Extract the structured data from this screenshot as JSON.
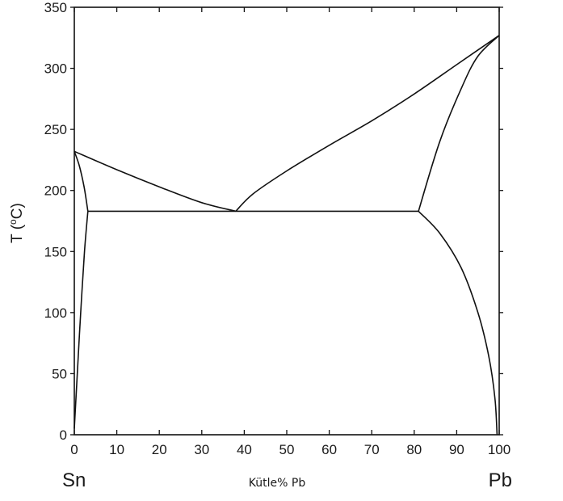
{
  "chart_data": {
    "type": "line",
    "title": "",
    "xlabel": "Kütle% Pb",
    "ylabel_prefix": "T (",
    "ylabel_sup": "o",
    "ylabel_suffix": "C)",
    "xlim": [
      0,
      100
    ],
    "ylim": [
      0,
      350
    ],
    "x_ticks": [
      0,
      10,
      20,
      30,
      40,
      50,
      60,
      70,
      80,
      90,
      100
    ],
    "y_ticks": [
      0,
      50,
      100,
      150,
      200,
      250,
      300,
      350
    ],
    "end_labels": {
      "left": "Sn",
      "right": "Pb"
    },
    "grid": false,
    "series": [
      {
        "key": "liquidus_left",
        "x": [
          0,
          10,
          20,
          30,
          38
        ],
        "y": [
          232,
          217,
          203,
          190,
          183
        ]
      },
      {
        "key": "liquidus_right",
        "x": [
          38,
          42,
          50,
          60,
          70,
          80,
          90,
          100
        ],
        "y": [
          183,
          197,
          216,
          237,
          257,
          279,
          303,
          327
        ]
      },
      {
        "key": "solidus_left",
        "x": [
          0,
          1.2,
          2.3,
          3.2
        ],
        "y": [
          232,
          220,
          203,
          183
        ]
      },
      {
        "key": "solvus_left",
        "x": [
          3.2,
          2.4,
          1.5,
          0.7,
          0
        ],
        "y": [
          183,
          150,
          100,
          50,
          5
        ]
      },
      {
        "key": "eutectic",
        "x": [
          3.2,
          81
        ],
        "y": [
          183,
          183
        ]
      },
      {
        "key": "solidus_right",
        "x": [
          81,
          86,
          91,
          95,
          100
        ],
        "y": [
          183,
          240,
          283,
          310,
          327
        ]
      },
      {
        "key": "solvus_right",
        "x": [
          81,
          86,
          91,
          95,
          97.5,
          99,
          99.5
        ],
        "y": [
          183,
          165,
          137,
          100,
          65,
          30,
          0
        ]
      }
    ]
  }
}
